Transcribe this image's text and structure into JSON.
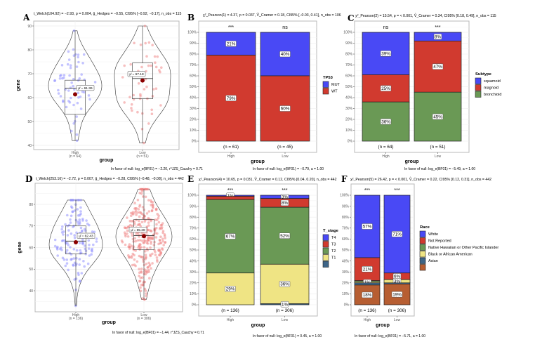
{
  "colors": {
    "blue": "#4949f5",
    "red": "#d13a2f",
    "green": "#6a9955",
    "yellow": "#efe484",
    "slate": "#3e6587",
    "brown": "#b75e32",
    "mean_point": "#8b0000",
    "high_points": "#8a8aff",
    "low_points": "#f08080"
  },
  "chart_data": [
    {
      "id": "A",
      "type": "violin",
      "letter": "A",
      "subtitle": "t_Welch(104.92) = −2.93, p = 0.004, ĝ_Hedges = −0.55, CI95% [−0.92, −0.17], n_obs = 115",
      "bf": "In favor of null: log_e(BF01) = −2.20, r^JZS_Cauchy = 0.71",
      "ylabel": "gene",
      "xlabel": "group",
      "yticks": [
        40,
        50,
        60,
        70,
        80,
        90
      ],
      "groups": [
        {
          "name": "High",
          "n_label": "(n = 64)",
          "n": 64,
          "min": 42,
          "q1": 53,
          "median": 64,
          "q3": 67.3,
          "max": 88,
          "mean": 61.36,
          "mean_label": "μ̂ = 61.36"
        },
        {
          "name": "Low",
          "n_label": "(n = 51)",
          "n": 51,
          "min": 41,
          "q1": 59.5,
          "median": 68,
          "q3": 74.5,
          "max": 90,
          "mean": 67.18,
          "mean_label": "μ̂ = 67.18"
        }
      ]
    },
    {
      "id": "B",
      "type": "bar",
      "letter": "B",
      "subtitle": "χ²_Pearson(1) = 4.37, p = 0.037, V̂_Cramer = 0.18, CI95% [−0.03, 0.41], n_obs = 106",
      "bf": "In favor of null: log_e(BF01) = −0.79, a = 1.00",
      "xlabel": "group",
      "legend_title": "TP53",
      "yticks": [
        "0%",
        "10%",
        "20%",
        "30%",
        "40%",
        "50%",
        "60%",
        "70%",
        "80%",
        "90%",
        "100%"
      ],
      "categories": [
        "High",
        "Low"
      ],
      "n_labels": [
        "(n = 61)",
        "(n = 45)"
      ],
      "significance": [
        "***",
        "ns"
      ],
      "series": [
        {
          "name": "MUT",
          "color": "#4949f5",
          "values": [
            21,
            40
          ],
          "labels": [
            "21%",
            "40%"
          ]
        },
        {
          "name": "WT",
          "color": "#d13a2f",
          "values": [
            79,
            60
          ],
          "labels": [
            "79%",
            "60%"
          ]
        }
      ]
    },
    {
      "id": "C",
      "type": "bar",
      "letter": "C",
      "subtitle": "χ²_Pearson(2) = 15.54, p = < 0.001, V̂_Cramer = 0.34, CI95% [0.18, 0.49], n_obs = 115",
      "bf": "In favor of null: log_e(BF01) = −5.49, a = 1.00",
      "xlabel": "group",
      "legend_title": "Subtype",
      "yticks": [
        "0%",
        "10%",
        "20%",
        "30%",
        "40%",
        "50%",
        "60%",
        "70%",
        "80%",
        "90%",
        "100%"
      ],
      "categories": [
        "High",
        "Low"
      ],
      "n_labels": [
        "(n = 64)",
        "(n = 51)"
      ],
      "significance": [
        "ns",
        "***"
      ],
      "series": [
        {
          "name": "squamoid",
          "color": "#4949f5",
          "values": [
            39,
            8
          ],
          "labels": [
            "39%",
            "8%"
          ]
        },
        {
          "name": "magnoid",
          "color": "#d13a2f",
          "values": [
            25,
            47
          ],
          "labels": [
            "25%",
            "47%"
          ]
        },
        {
          "name": "bronchioid",
          "color": "#6a9955",
          "values": [
            36,
            45
          ],
          "labels": [
            "36%",
            "45%"
          ]
        }
      ]
    },
    {
      "id": "D",
      "type": "violin",
      "letter": "D",
      "subtitle": "t_Welch(253.16) = −2.72, p = 0.007, ĝ_Hedges = −0.28, CI95% [−0.48, −0.08], n_obs = 442",
      "bf": "In favor of null: log_e(BF01) = −1.44, r^JZS_Cauchy = 0.71",
      "ylabel": "gene",
      "xlabel": "group",
      "yticks": [
        40,
        50,
        60,
        70,
        80
      ],
      "groups": [
        {
          "name": "High",
          "n_label": "(n = 136)",
          "n": 136,
          "min": 33,
          "q1": 57,
          "median": 63,
          "q3": 70,
          "max": 82,
          "mean": 62.43,
          "mean_label": "μ̂ = 62.43"
        },
        {
          "name": "Low",
          "n_label": "(n = 306)",
          "n": 306,
          "min": 36,
          "q1": 59,
          "median": 65.5,
          "q3": 73,
          "max": 87,
          "mean": 65.28,
          "mean_label": "μ̂ = 65.28"
        }
      ]
    },
    {
      "id": "E",
      "type": "bar",
      "letter": "E",
      "subtitle": "χ²_Pearson(4) = 10.65, p = 0.031, V̂_Cramer = 0.12, CI95% [0.04, 0.20], n_obs = 442",
      "bf": "In favor of null: log_e(BF01) = 0.45, a = 1.00",
      "xlabel": "group",
      "legend_title": "T_stage",
      "yticks": [
        "0%",
        "10%",
        "20%",
        "30%",
        "40%",
        "50%",
        "60%",
        "70%",
        "80%",
        "90%",
        "100%"
      ],
      "categories": [
        "High",
        "Low"
      ],
      "n_labels": [
        "(n = 136)",
        "(n = 306)"
      ],
      "significance": [
        "***",
        "***"
      ],
      "series": [
        {
          "name": "T4",
          "color": "#4949f5",
          "values": [
            1,
            3
          ],
          "labels": [
            "1%",
            "3%"
          ]
        },
        {
          "name": "T3",
          "color": "#d13a2f",
          "values": [
            3,
            8
          ],
          "labels": [
            "",
            "8%"
          ]
        },
        {
          "name": "T2",
          "color": "#6a9955",
          "values": [
            67,
            52
          ],
          "labels": [
            "67%",
            "52%"
          ]
        },
        {
          "name": "T1",
          "color": "#efe484",
          "values": [
            29,
            36
          ],
          "labels": [
            "29%",
            "36%"
          ]
        },
        {
          "name": "",
          "color": "#3e6587",
          "values": [
            0,
            1
          ],
          "labels": [
            "",
            "1%"
          ]
        }
      ]
    },
    {
      "id": "F",
      "type": "bar",
      "letter": "F",
      "subtitle": "χ²_Pearson(5) = 26.42, p = < 0.001, V̂_Cramer = 0.22, CI95% [0.12, 0.31], n_obs = 442",
      "bf": "In favor of null: log_e(BF01) = −5.71, a = 1.00",
      "xlabel": "group",
      "legend_title": "Race",
      "yticks": [
        "0%",
        "10%",
        "20%",
        "30%",
        "40%",
        "50%",
        "60%",
        "70%",
        "80%",
        "90%",
        "100%"
      ],
      "categories": [
        "High",
        "Low"
      ],
      "n_labels": [
        "(n = 136)",
        "(n = 306)"
      ],
      "significance": [
        "***",
        "***"
      ],
      "series": [
        {
          "name": "White",
          "color": "#4949f5",
          "values": [
            57,
            71
          ],
          "labels": [
            "57%",
            "71%"
          ]
        },
        {
          "name": "Not Reported",
          "color": "#d13a2f",
          "values": [
            21,
            6
          ],
          "labels": [
            "21%",
            "6%"
          ]
        },
        {
          "name": "Native Hawaiian or Other Pacific Islander",
          "color": "#6a9955",
          "values": [
            1,
            0
          ],
          "labels": [
            "",
            ""
          ]
        },
        {
          "name": "Black or African American",
          "color": "#efe484",
          "values": [
            1,
            3
          ],
          "labels": [
            "1%",
            "3%"
          ]
        },
        {
          "name": "Asian",
          "color": "#3e6587",
          "values": [
            2,
            1
          ],
          "labels": [
            "",
            ""
          ]
        },
        {
          "name": "",
          "color": "#b75e32",
          "values": [
            18,
            19
          ],
          "labels": [
            "18%",
            "19%"
          ]
        }
      ]
    }
  ]
}
